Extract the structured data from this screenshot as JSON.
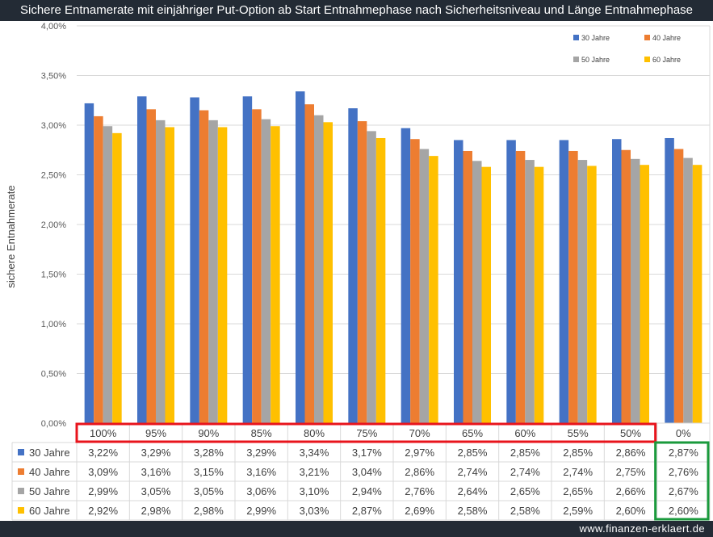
{
  "header": {
    "title": "Sichere Entnamerate mit einjähriger Put-Option ab Start Entnahmephase nach Sicherheitsniveau und Länge Entnahmephase"
  },
  "footer": {
    "url": "www.finanzen-erklaert.de"
  },
  "chart_data": {
    "type": "bar",
    "title": "Sichere Entnamerate mit einjähriger Put-Option ab Start Entnahmephase nach Sicherheitsniveau und Länge Entnahmephase",
    "ylabel": "sichere Entnahmerate",
    "xlabel": "",
    "categories": [
      "100%",
      "95%",
      "90%",
      "85%",
      "80%",
      "75%",
      "70%",
      "65%",
      "60%",
      "55%",
      "50%",
      "0%"
    ],
    "ylim": [
      0,
      4
    ],
    "y_ticks": [
      {
        "value": 0,
        "label": "0,00%"
      },
      {
        "value": 0.5,
        "label": "0,50%"
      },
      {
        "value": 1,
        "label": "1,00%"
      },
      {
        "value": 1.5,
        "label": "1,50%"
      },
      {
        "value": 2,
        "label": "2,00%"
      },
      {
        "value": 2.5,
        "label": "2,50%"
      },
      {
        "value": 3,
        "label": "3,00%"
      },
      {
        "value": 3.5,
        "label": "3,50%"
      },
      {
        "value": 4,
        "label": "4,00%"
      }
    ],
    "grid": true,
    "legend_position": "top-right",
    "series": [
      {
        "name": "30 Jahre",
        "color": "#4472c4",
        "values": [
          3.22,
          3.29,
          3.28,
          3.29,
          3.34,
          3.17,
          2.97,
          2.85,
          2.85,
          2.85,
          2.86,
          2.87
        ],
        "labels": [
          "3,22%",
          "3,29%",
          "3,28%",
          "3,29%",
          "3,34%",
          "3,17%",
          "2,97%",
          "2,85%",
          "2,85%",
          "2,85%",
          "2,86%",
          "2,87%"
        ]
      },
      {
        "name": "40 Jahre",
        "color": "#ed7d31",
        "values": [
          3.09,
          3.16,
          3.15,
          3.16,
          3.21,
          3.04,
          2.86,
          2.74,
          2.74,
          2.74,
          2.75,
          2.76
        ],
        "labels": [
          "3,09%",
          "3,16%",
          "3,15%",
          "3,16%",
          "3,21%",
          "3,04%",
          "2,86%",
          "2,74%",
          "2,74%",
          "2,74%",
          "2,75%",
          "2,76%"
        ]
      },
      {
        "name": "50 Jahre",
        "color": "#a5a5a5",
        "values": [
          2.99,
          3.05,
          3.05,
          3.06,
          3.1,
          2.94,
          2.76,
          2.64,
          2.65,
          2.65,
          2.66,
          2.67
        ],
        "labels": [
          "2,99%",
          "3,05%",
          "3,05%",
          "3,06%",
          "3,10%",
          "2,94%",
          "2,76%",
          "2,64%",
          "2,65%",
          "2,65%",
          "2,66%",
          "2,67%"
        ]
      },
      {
        "name": "60 Jahre",
        "color": "#ffc000",
        "values": [
          2.92,
          2.98,
          2.98,
          2.99,
          3.03,
          2.87,
          2.69,
          2.58,
          2.58,
          2.59,
          2.6,
          2.6
        ],
        "labels": [
          "2,92%",
          "2,98%",
          "2,98%",
          "2,99%",
          "3,03%",
          "2,87%",
          "2,69%",
          "2,58%",
          "2,58%",
          "2,59%",
          "2,60%",
          "2,60%"
        ]
      }
    ],
    "highlights": [
      {
        "color": "#e8141c",
        "categories": [
          "100%",
          "95%",
          "90%",
          "85%",
          "80%",
          "75%",
          "70%",
          "65%",
          "60%",
          "55%",
          "50%"
        ],
        "scope": "category-header"
      },
      {
        "color": "#1a9a3c",
        "categories": [
          "0%"
        ],
        "scope": "table-values"
      }
    ]
  }
}
